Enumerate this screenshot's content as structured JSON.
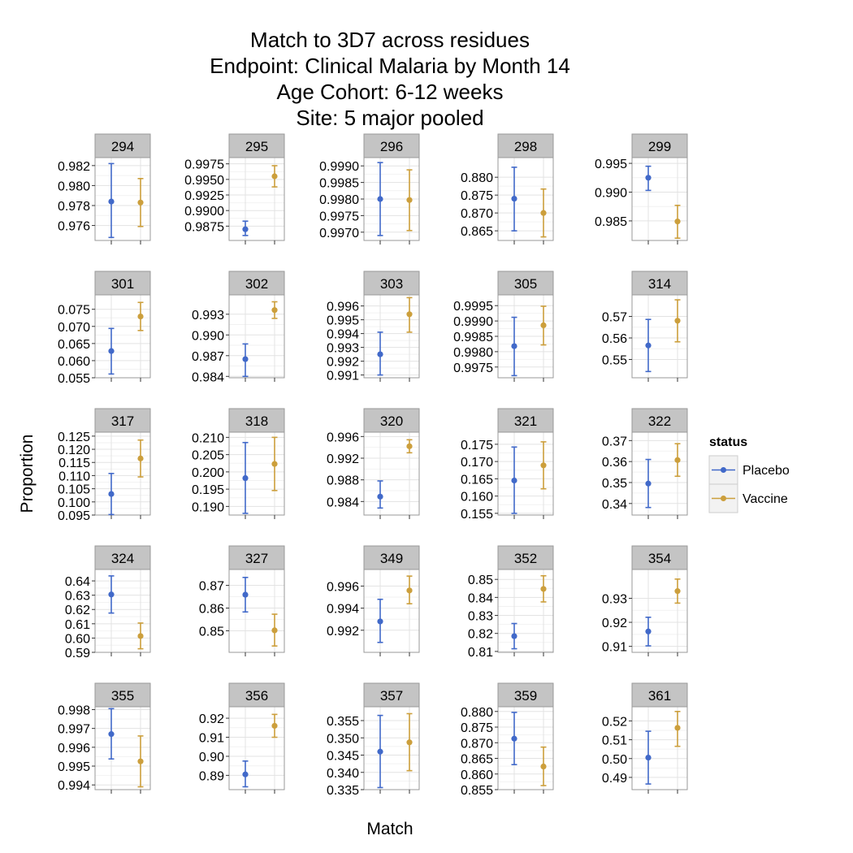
{
  "chart_data": {
    "type": "scatter",
    "title": [
      "Match to 3D7 across residues",
      "Endpoint: Clinical Malaria by Month 14",
      "Age Cohort: 6-12 weeks",
      "Site: 5 major pooled"
    ],
    "xlabel": "Match",
    "ylabel": "Proportion",
    "grid": true,
    "legend_position": "right",
    "legend": {
      "title": "status",
      "items": [
        {
          "label": "Placebo",
          "color": "#4169c9"
        },
        {
          "label": "Vaccine",
          "color": "#cc9f3c"
        }
      ]
    },
    "panels": [
      {
        "label": "294",
        "ticks": [
          "0.976",
          "0.978",
          "0.980",
          "0.982"
        ],
        "ylim": [
          0.9745,
          0.9828
        ],
        "placebo": {
          "est": 0.9784,
          "lo": 0.9748,
          "hi": 0.9822
        },
        "vaccine": {
          "est": 0.9783,
          "lo": 0.9759,
          "hi": 0.9807
        }
      },
      {
        "label": "295",
        "ticks": [
          "0.9875",
          "0.9900",
          "0.9925",
          "0.9950",
          "0.9975"
        ],
        "ylim": [
          0.9852,
          0.9985
        ],
        "placebo": {
          "est": 0.987,
          "lo": 0.986,
          "hi": 0.9883
        },
        "vaccine": {
          "est": 0.9955,
          "lo": 0.9938,
          "hi": 0.9972
        }
      },
      {
        "label": "296",
        "ticks": [
          "0.9970",
          "0.9975",
          "0.9980",
          "0.9985",
          "0.9990"
        ],
        "ylim": [
          0.99675,
          0.99925
        ],
        "placebo": {
          "est": 0.998,
          "lo": 0.9969,
          "hi": 0.9991
        },
        "vaccine": {
          "est": 0.99797,
          "lo": 0.99705,
          "hi": 0.99888
        }
      },
      {
        "label": "298",
        "ticks": [
          "0.865",
          "0.870",
          "0.875",
          "0.880"
        ],
        "ylim": [
          0.8623,
          0.8855
        ],
        "placebo": {
          "est": 0.874,
          "lo": 0.865,
          "hi": 0.8828
        },
        "vaccine": {
          "est": 0.87,
          "lo": 0.8633,
          "hi": 0.8767
        }
      },
      {
        "label": "299",
        "ticks": [
          "0.985",
          "0.990",
          "0.995"
        ],
        "ylim": [
          0.9816,
          0.996
        ],
        "placebo": {
          "est": 0.9925,
          "lo": 0.9903,
          "hi": 0.9945
        },
        "vaccine": {
          "est": 0.9849,
          "lo": 0.982,
          "hi": 0.9877
        }
      },
      {
        "label": "301",
        "ticks": [
          "0.055",
          "0.060",
          "0.065",
          "0.070",
          "0.075"
        ],
        "ylim": [
          0.055,
          0.0792
        ],
        "placebo": {
          "est": 0.0628,
          "lo": 0.0561,
          "hi": 0.0694
        },
        "vaccine": {
          "est": 0.0729,
          "lo": 0.0688,
          "hi": 0.077
        }
      },
      {
        "label": "302",
        "ticks": [
          "0.984",
          "0.987",
          "0.990",
          "0.993"
        ],
        "ylim": [
          0.9838,
          0.9958
        ],
        "placebo": {
          "est": 0.9865,
          "lo": 0.984,
          "hi": 0.9887
        },
        "vaccine": {
          "est": 0.9936,
          "lo": 0.9924,
          "hi": 0.9948
        }
      },
      {
        "label": "303",
        "ticks": [
          "0.991",
          "0.992",
          "0.993",
          "0.994",
          "0.995",
          "0.996"
        ],
        "ylim": [
          0.9908,
          0.9968
        ],
        "placebo": {
          "est": 0.9925,
          "lo": 0.991,
          "hi": 0.9941
        },
        "vaccine": {
          "est": 0.9954,
          "lo": 0.9941,
          "hi": 0.9966
        }
      },
      {
        "label": "305",
        "ticks": [
          "0.9975",
          "0.9980",
          "0.9985",
          "0.9990",
          "0.9995"
        ],
        "ylim": [
          0.99715,
          0.99985
        ],
        "placebo": {
          "est": 0.99818,
          "lo": 0.99722,
          "hi": 0.99912
        },
        "vaccine": {
          "est": 0.99886,
          "lo": 0.99822,
          "hi": 0.99948
        }
      },
      {
        "label": "314",
        "ticks": [
          "0.55",
          "0.56",
          "0.57"
        ],
        "ylim": [
          0.5415,
          0.58
        ],
        "placebo": {
          "est": 0.5565,
          "lo": 0.5444,
          "hi": 0.5686
        },
        "vaccine": {
          "est": 0.568,
          "lo": 0.5582,
          "hi": 0.5777
        }
      },
      {
        "label": "317",
        "ticks": [
          "0.095",
          "0.100",
          "0.105",
          "0.110",
          "0.115",
          "0.120",
          "0.125"
        ],
        "ylim": [
          0.095,
          0.1265
        ],
        "placebo": {
          "est": 0.103,
          "lo": 0.0952,
          "hi": 0.1108
        },
        "vaccine": {
          "est": 0.1165,
          "lo": 0.1095,
          "hi": 0.1235
        }
      },
      {
        "label": "318",
        "ticks": [
          "0.190",
          "0.195",
          "0.200",
          "0.205",
          "0.210"
        ],
        "ylim": [
          0.1875,
          0.2115
        ],
        "placebo": {
          "est": 0.1982,
          "lo": 0.188,
          "hi": 0.2085
        },
        "vaccine": {
          "est": 0.2023,
          "lo": 0.1946,
          "hi": 0.21
        }
      },
      {
        "label": "320",
        "ticks": [
          "0.984",
          "0.988",
          "0.992",
          "0.996"
        ],
        "ylim": [
          0.9815,
          0.9968
        ],
        "placebo": {
          "est": 0.9849,
          "lo": 0.9828,
          "hi": 0.9878
        },
        "vaccine": {
          "est": 0.9942,
          "lo": 0.993,
          "hi": 0.9954
        }
      },
      {
        "label": "321",
        "ticks": [
          "0.155",
          "0.160",
          "0.165",
          "0.170",
          "0.175"
        ],
        "ylim": [
          0.1545,
          0.1785
        ],
        "placebo": {
          "est": 0.1645,
          "lo": 0.155,
          "hi": 0.1742
        },
        "vaccine": {
          "est": 0.1689,
          "lo": 0.1621,
          "hi": 0.1757
        }
      },
      {
        "label": "322",
        "ticks": [
          "0.34",
          "0.35",
          "0.36",
          "0.37"
        ],
        "ylim": [
          0.3345,
          0.374
        ],
        "placebo": {
          "est": 0.3495,
          "lo": 0.3381,
          "hi": 0.361
        },
        "vaccine": {
          "est": 0.3607,
          "lo": 0.353,
          "hi": 0.3685
        }
      },
      {
        "label": "324",
        "ticks": [
          "0.59",
          "0.60",
          "0.61",
          "0.62",
          "0.63",
          "0.64"
        ],
        "ylim": [
          0.59,
          0.648
        ],
        "placebo": {
          "est": 0.6305,
          "lo": 0.6175,
          "hi": 0.6435
        },
        "vaccine": {
          "est": 0.6014,
          "lo": 0.5925,
          "hi": 0.6105
        }
      },
      {
        "label": "327",
        "ticks": [
          "0.85",
          "0.86",
          "0.87"
        ],
        "ylim": [
          0.8405,
          0.877
        ],
        "placebo": {
          "est": 0.8659,
          "lo": 0.8583,
          "hi": 0.8735
        },
        "vaccine": {
          "est": 0.8502,
          "lo": 0.8433,
          "hi": 0.8573
        }
      },
      {
        "label": "349",
        "ticks": [
          "0.992",
          "0.994",
          "0.996"
        ],
        "ylim": [
          0.99,
          0.9975
        ],
        "placebo": {
          "est": 0.9928,
          "lo": 0.9909,
          "hi": 0.9948
        },
        "vaccine": {
          "est": 0.9956,
          "lo": 0.9944,
          "hi": 0.9969
        }
      },
      {
        "label": "352",
        "ticks": [
          "0.81",
          "0.82",
          "0.83",
          "0.84",
          "0.85"
        ],
        "ylim": [
          0.8095,
          0.8555
        ],
        "placebo": {
          "est": 0.8185,
          "lo": 0.8115,
          "hi": 0.8255
        },
        "vaccine": {
          "est": 0.8447,
          "lo": 0.8375,
          "hi": 0.852
        }
      },
      {
        "label": "354",
        "ticks": [
          "0.91",
          "0.92",
          "0.93"
        ],
        "ylim": [
          0.9075,
          0.942
        ],
        "placebo": {
          "est": 0.9162,
          "lo": 0.9102,
          "hi": 0.9221
        },
        "vaccine": {
          "est": 0.933,
          "lo": 0.928,
          "hi": 0.938
        }
      },
      {
        "label": "355",
        "ticks": [
          "0.994",
          "0.995",
          "0.996",
          "0.997",
          "0.998"
        ],
        "ylim": [
          0.99375,
          0.99815
        ],
        "placebo": {
          "est": 0.9967,
          "lo": 0.99538,
          "hi": 0.99805
        },
        "vaccine": {
          "est": 0.99525,
          "lo": 0.9939,
          "hi": 0.9966
        }
      },
      {
        "label": "356",
        "ticks": [
          "0.89",
          "0.90",
          "0.91",
          "0.92"
        ],
        "ylim": [
          0.8825,
          0.926
        ],
        "placebo": {
          "est": 0.8905,
          "lo": 0.884,
          "hi": 0.8975
        },
        "vaccine": {
          "est": 0.916,
          "lo": 0.91,
          "hi": 0.922
        }
      },
      {
        "label": "357",
        "ticks": [
          "0.335",
          "0.340",
          "0.345",
          "0.350",
          "0.355"
        ],
        "ylim": [
          0.335,
          0.359
        ],
        "placebo": {
          "est": 0.346,
          "lo": 0.3356,
          "hi": 0.3565
        },
        "vaccine": {
          "est": 0.3487,
          "lo": 0.3405,
          "hi": 0.357
        }
      },
      {
        "label": "359",
        "ticks": [
          "0.855",
          "0.860",
          "0.865",
          "0.870",
          "0.875",
          "0.880"
        ],
        "ylim": [
          0.855,
          0.8815
        ],
        "placebo": {
          "est": 0.8713,
          "lo": 0.863,
          "hi": 0.8797
        },
        "vaccine": {
          "est": 0.8624,
          "lo": 0.8563,
          "hi": 0.8686
        }
      },
      {
        "label": "361",
        "ticks": [
          "0.49",
          "0.50",
          "0.51",
          "0.52"
        ],
        "ylim": [
          0.4835,
          0.5275
        ],
        "placebo": {
          "est": 0.5005,
          "lo": 0.4865,
          "hi": 0.5145
        },
        "vaccine": {
          "est": 0.5163,
          "lo": 0.5065,
          "hi": 0.525
        }
      }
    ]
  }
}
